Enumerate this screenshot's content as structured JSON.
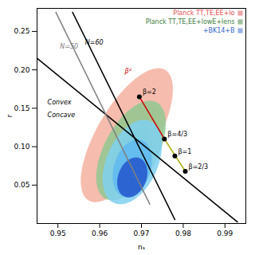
{
  "chart_data": {
    "type": "scatter",
    "title": "",
    "xlabel": "nₛ",
    "ylabel": "r",
    "xlim": [
      0.945,
      0.995
    ],
    "ylim": [
      0.0,
      0.28
    ],
    "xticks": [
      0.95,
      0.96,
      0.97,
      0.98,
      0.99
    ],
    "yticks": [
      0.05,
      {
        "value": 0.1,
        "label": "0.10"
      },
      0.15,
      {
        "value": 0.2,
        "label": "0.20"
      },
      0.25
    ],
    "legend": "upper right",
    "legend_entries": [
      {
        "name": "Planck TT,TE,EE+lo",
        "color": "#e05050"
      },
      {
        "name": "Planck TT,TE,EE+lowE+lens",
        "color": "#408040"
      },
      {
        "name": "+BK14+B",
        "color": "#3366cc"
      }
    ],
    "ellipses": [
      {
        "cx": 0.9665,
        "cy": 0.115,
        "w": 0.016,
        "h": 0.175,
        "angle": -5,
        "color": "#f4b0a0"
      },
      {
        "cx": 0.9675,
        "cy": 0.105,
        "w": 0.01,
        "h": 0.1,
        "angle": -4,
        "color": "#f4b0a0"
      },
      {
        "cx": 0.9675,
        "cy": 0.095,
        "w": 0.014,
        "h": 0.13,
        "angle": -4,
        "color": "#90c890"
      },
      {
        "cx": 0.9678,
        "cy": 0.085,
        "w": 0.009,
        "h": 0.078,
        "angle": -3,
        "color": "#90c890"
      },
      {
        "cx": 0.9678,
        "cy": 0.08,
        "w": 0.013,
        "h": 0.11,
        "angle": -3,
        "color": "#80d0f0"
      },
      {
        "cx": 0.9678,
        "cy": 0.072,
        "w": 0.009,
        "h": 0.075,
        "angle": -2,
        "color": "#60b8f0"
      },
      {
        "cx": 0.9678,
        "cy": 0.06,
        "w": 0.007,
        "h": 0.052,
        "angle": -2,
        "color": "#2255cc"
      }
    ],
    "lines": [
      {
        "x": [
          0.945,
          0.993
        ],
        "y": [
          0.215,
          0.002
        ],
        "color": "#000000"
      },
      {
        "x": [
          0.9535,
          0.978
        ],
        "y": [
          0.275,
          0.005
        ],
        "color": "#000000"
      },
      {
        "x": [
          0.9495,
          0.972
        ],
        "y": [
          0.275,
          0.025
        ],
        "color": "#808080"
      },
      {
        "x": [
          0.9695,
          0.9755
        ],
        "y": [
          0.165,
          0.11
        ],
        "color": "#cc0000"
      },
      {
        "x": [
          0.9755,
          0.9805
        ],
        "y": [
          0.11,
          0.068
        ],
        "color": "#aaaa00"
      }
    ],
    "points": {
      "x": [
        0.9695,
        0.9755,
        0.978,
        0.9805
      ],
      "y": [
        0.165,
        0.11,
        0.088,
        0.068
      ],
      "labels": [
        "β=2",
        "β=4/3",
        "β=1",
        "β=2/3"
      ],
      "color": "#000000"
    },
    "annotations": [
      {
        "text": "N=60",
        "x": 0.9565,
        "y": 0.233,
        "color": "#000000"
      },
      {
        "text": "N=50",
        "x": 0.9505,
        "y": 0.228,
        "color": "#808080"
      },
      {
        "text": "Convex",
        "x": 0.9475,
        "y": 0.155,
        "color": "#000000"
      },
      {
        "text": "Concave",
        "x": 0.9475,
        "y": 0.138,
        "color": "#000000"
      },
      {
        "text": "β²",
        "x": 0.966,
        "y": 0.195,
        "color": "#cc0000"
      }
    ]
  }
}
